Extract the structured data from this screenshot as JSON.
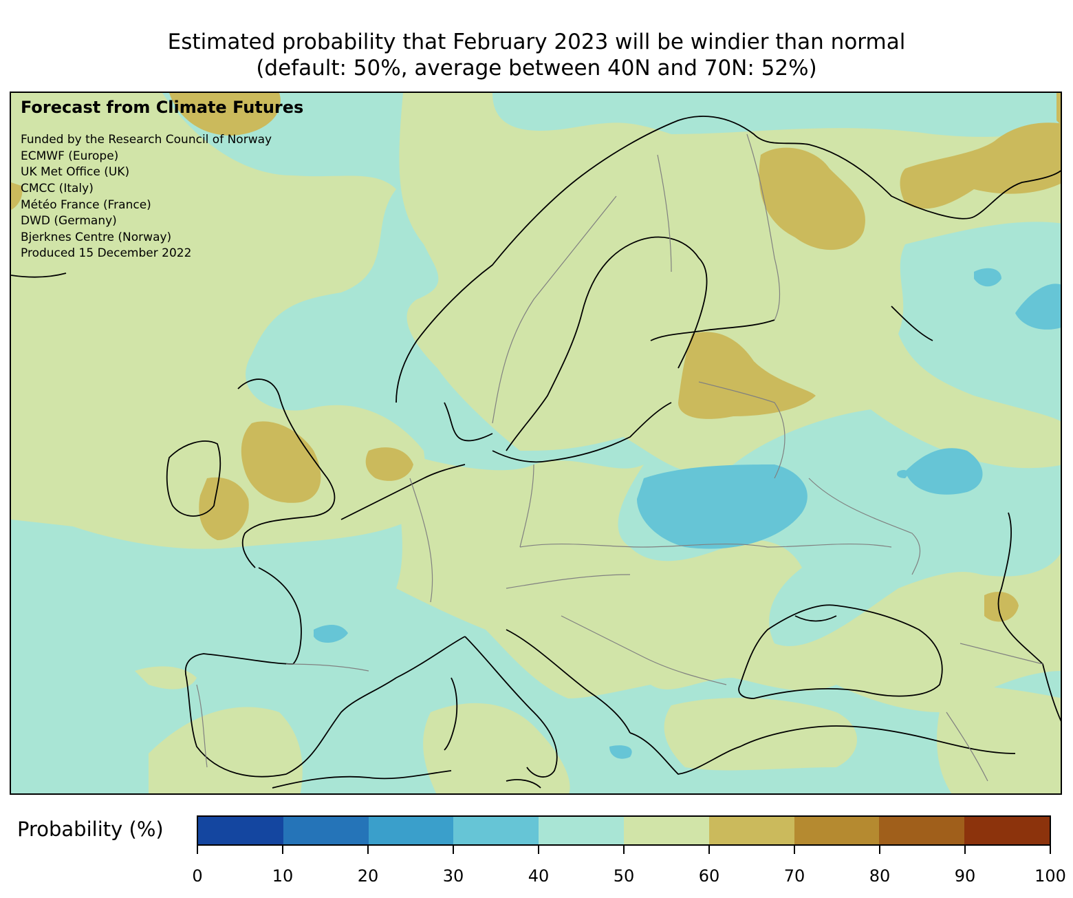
{
  "title": {
    "line1": "Estimated probability that February 2023 will be windier than normal",
    "line2": "(default: 50%, average between 40N and 70N: 52%)"
  },
  "credits": {
    "heading": "Forecast from Climate Futures",
    "lines": [
      "Funded by the Research Council of Norway",
      "ECMWF (Europe)",
      "UK Met Office (UK)",
      "CMCC (Italy)",
      "Météo France (France)",
      "DWD (Germany)",
      "Bjerknes Centre (Norway)",
      "Produced 15 December 2022"
    ]
  },
  "colorbar": {
    "label": "Probability (%)",
    "ticks": [
      "0",
      "10",
      "20",
      "30",
      "40",
      "50",
      "60",
      "70",
      "80",
      "90",
      "100"
    ],
    "colors": [
      "#1446a0",
      "#2574b8",
      "#3a9fcb",
      "#66c5d6",
      "#a9e5d5",
      "#d1e4a8",
      "#cbba5c",
      "#b58a30",
      "#a05f1b",
      "#8c330c"
    ]
  },
  "map_colors": {
    "below_40": "#66c5d6",
    "40_50": "#a9e5d5",
    "50_60": "#d1e4a8",
    "60_70": "#cbba5c",
    "coastline": "#000000",
    "borders": "#808080"
  }
}
